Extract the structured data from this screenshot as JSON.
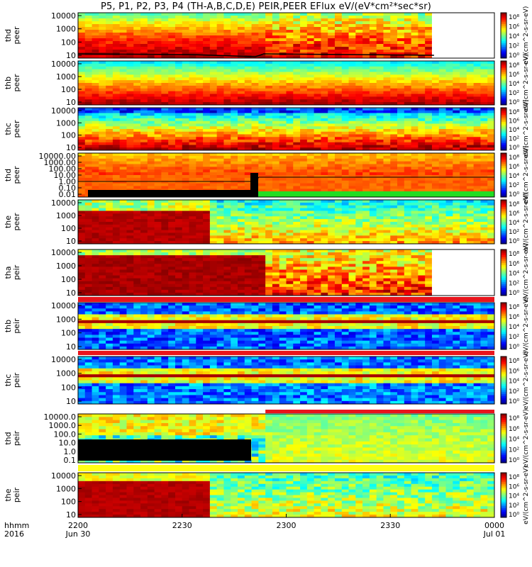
{
  "title": "P5, P1, P2, P3, P4 (TH-A,B,C,D,E) PEIR,PEER EFlux eV/(eV*cm²*sec*sr)",
  "colorbar_unit_text": "eV/(cm^2-s-sr-eV)",
  "colorbar_unit_text_alt": "[eV/(cm2-s-sr-eV)]",
  "x_axis": {
    "corner_label_1": "hhmm",
    "corner_label_2": "2016",
    "ticks": [
      "2200",
      "2230",
      "2300",
      "2330",
      "0000"
    ],
    "dates": [
      "Jun 30",
      "",
      "",
      "",
      "Jul 01"
    ]
  },
  "cbar_tick_labels": [
    "10⁸",
    "10⁶",
    "10⁴",
    "10²",
    "10⁰"
  ],
  "chart_data": [
    {
      "type": "heatmap",
      "panel": "thd peer",
      "ylabel_1": "thd",
      "ylabel_2": "peer",
      "yticks": [
        "10000",
        "1000",
        "100",
        "10"
      ],
      "style": "peer_a",
      "data_end_fraction": 0.855
    },
    {
      "type": "heatmap",
      "panel": "thb peer",
      "ylabel_1": "thb",
      "ylabel_2": "peer",
      "yticks": [
        "10000",
        "1000",
        "100",
        "10"
      ],
      "style": "peer_b"
    },
    {
      "type": "heatmap",
      "panel": "thc peer",
      "ylabel_1": "thc",
      "ylabel_2": "peer",
      "yticks": [
        "10000",
        "1000",
        "100",
        "10"
      ],
      "style": "peer_c"
    },
    {
      "type": "heatmap",
      "panel": "thd peer",
      "ylabel_1": "thd",
      "ylabel_2": "peer",
      "yticks": [
        "10000.00",
        "1000.00",
        "100.00",
        "10.00",
        "1.00",
        "0.10",
        "0.01"
      ],
      "style": "peer_d"
    },
    {
      "type": "heatmap",
      "panel": "the peer",
      "ylabel_1": "the",
      "ylabel_2": "peer",
      "yticks": [
        "10000",
        "1000",
        "100",
        "10"
      ],
      "style": "peer_e"
    },
    {
      "type": "heatmap",
      "panel": "tha peir",
      "ylabel_1": "tha",
      "ylabel_2": "peir",
      "yticks": [
        "10000",
        "1000",
        "100",
        "10"
      ],
      "style": "peir_a",
      "data_end_fraction": 0.855
    },
    {
      "type": "heatmap",
      "panel": "thb peir",
      "ylabel_1": "thb",
      "ylabel_2": "peir",
      "yticks": [
        "10000",
        "1000",
        "100",
        "10"
      ],
      "style": "peir_b"
    },
    {
      "type": "heatmap",
      "panel": "thc peir",
      "ylabel_1": "thc",
      "ylabel_2": "peir",
      "yticks": [
        "10000",
        "1000",
        "100",
        "10"
      ],
      "style": "peir_c"
    },
    {
      "type": "heatmap",
      "panel": "thd peir",
      "ylabel_1": "thd",
      "ylabel_2": "peir",
      "yticks": [
        "10000.0",
        "1000.0",
        "100.0",
        "10.0",
        "1.0",
        "0.1"
      ],
      "style": "peir_d"
    },
    {
      "type": "heatmap",
      "panel": "the peir",
      "ylabel_1": "the",
      "ylabel_2": "peir",
      "yticks": [
        "10000",
        "1000",
        "100",
        "10"
      ],
      "style": "peir_e"
    }
  ],
  "colors": {
    "red_bar": "#e8141c",
    "black_trace": "#000000"
  }
}
